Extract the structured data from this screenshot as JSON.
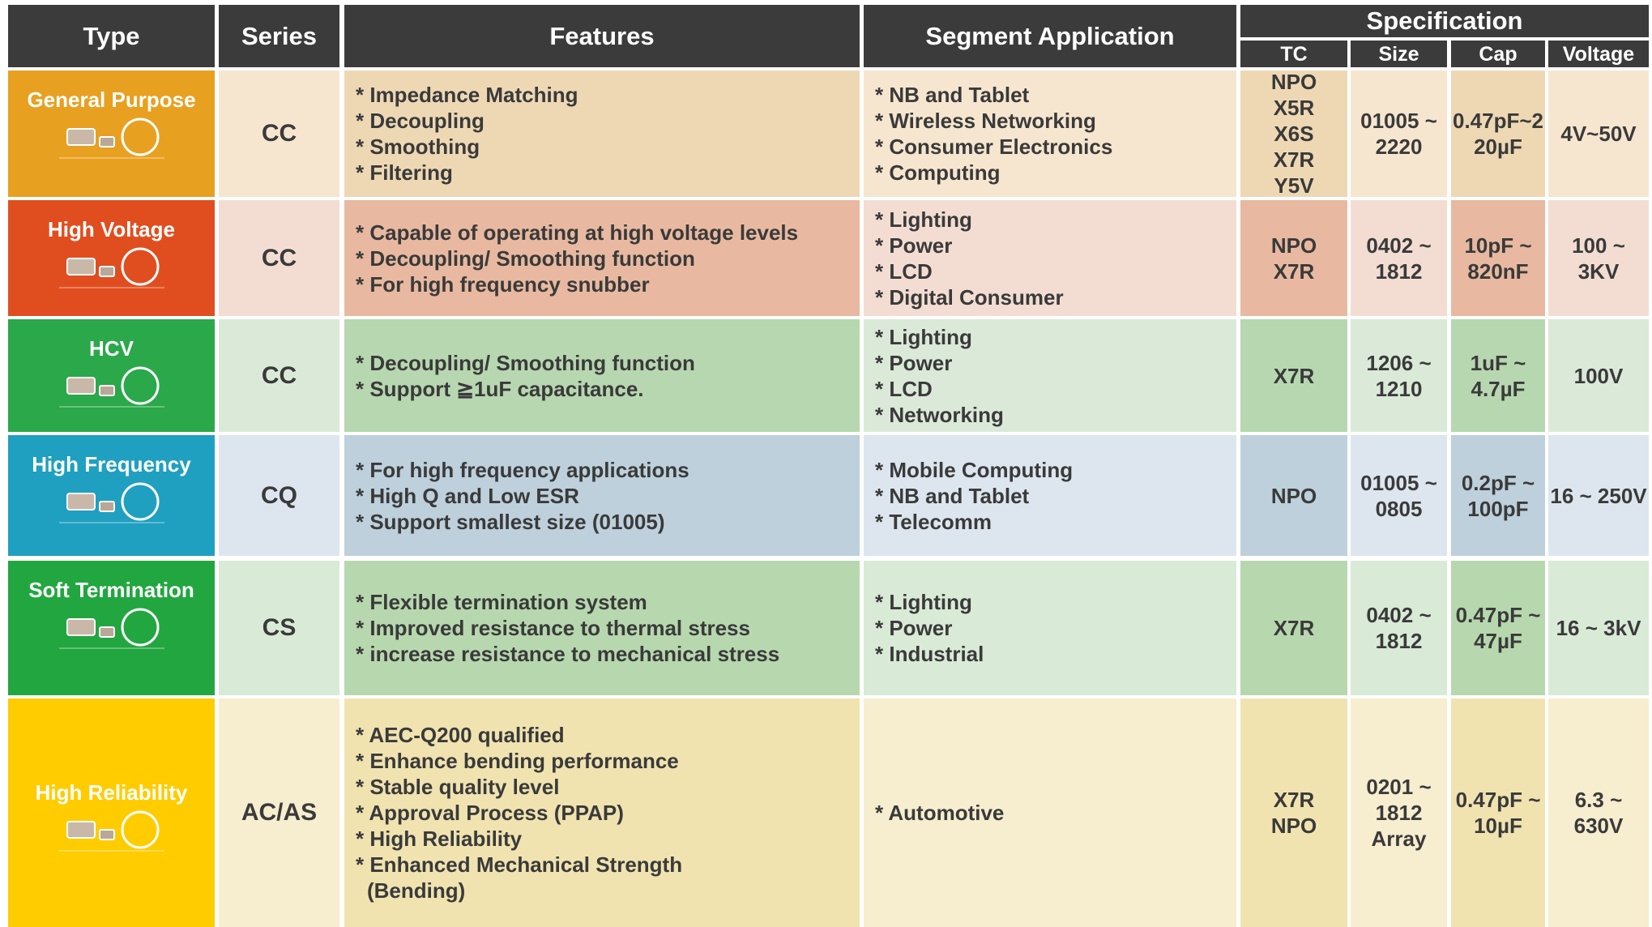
{
  "header": {
    "columns": [
      "Type",
      "Series",
      "Features",
      "Segment Application"
    ],
    "spec_title": "Specification",
    "spec_columns": [
      "TC",
      "Size",
      "Cap",
      "Voltage"
    ]
  },
  "rows": [
    {
      "type": "General Purpose",
      "series": "CC",
      "features": [
        "* Impedance Matching",
        "* Decoupling",
        "* Smoothing",
        "* Filtering"
      ],
      "segments": [
        "* NB and Tablet",
        "* Wireless Networking",
        "* Consumer Electronics",
        "* Computing"
      ],
      "tc": [
        "NPO",
        "X5R",
        "X6S",
        "X7R",
        "Y5V"
      ],
      "size": [
        "01005 ~",
        "2220"
      ],
      "cap": [
        "0.47pF~2",
        "20µF"
      ],
      "voltage": [
        "4V~50V"
      ]
    },
    {
      "type": "High Voltage",
      "series": "CC",
      "features": [
        "* Capable of operating at high voltage levels",
        "* Decoupling/ Smoothing function",
        "* For high frequency snubber"
      ],
      "segments": [
        "* Lighting",
        "* Power",
        "* LCD",
        "* Digital Consumer"
      ],
      "tc": [
        "NPO",
        "X7R"
      ],
      "size": [
        "0402 ~",
        "1812"
      ],
      "cap": [
        "10pF ~",
        "820nF"
      ],
      "voltage": [
        "100 ~",
        "3KV"
      ]
    },
    {
      "type": "HCV",
      "series": "CC",
      "features": [
        "* Decoupling/ Smoothing function",
        "* Support ≧1uF capacitance."
      ],
      "segments": [
        "* Lighting",
        "* Power",
        "* LCD",
        "* Networking"
      ],
      "tc": [
        "X7R"
      ],
      "size": [
        "1206 ~",
        "1210"
      ],
      "cap": [
        "1uF ~",
        "4.7µF"
      ],
      "voltage": [
        "100V"
      ]
    },
    {
      "type": "High Frequency",
      "series": "CQ",
      "features": [
        "* For high frequency applications",
        "* High Q and Low ESR",
        "* Support smallest size (01005)"
      ],
      "segments": [
        "* Mobile Computing",
        "* NB and Tablet",
        "* Telecomm"
      ],
      "tc": [
        "NPO"
      ],
      "size": [
        "01005 ~",
        "0805"
      ],
      "cap": [
        "0.2pF ~",
        "100pF"
      ],
      "voltage": [
        "16 ~ 250V"
      ]
    },
    {
      "type": "Soft Termination",
      "series": "CS",
      "features": [
        "* Flexible termination system",
        "* Improved resistance to thermal stress",
        "* increase resistance to mechanical stress"
      ],
      "segments": [
        "* Lighting",
        "* Power",
        "* Industrial"
      ],
      "tc": [
        "X7R"
      ],
      "size": [
        "0402 ~",
        "1812"
      ],
      "cap": [
        "0.47pF ~",
        "47µF"
      ],
      "voltage": [
        "16 ~ 3kV"
      ]
    },
    {
      "type": "High Reliability",
      "series": "AC/AS",
      "features": [
        "* AEC-Q200 qualified",
        "* Enhance bending performance",
        "* Stable quality level",
        "* Approval Process (PPAP)",
        "* High Reliability",
        "* Enhanced Mechanical Strength",
        "(Bending)"
      ],
      "segments": [
        "* Automotive"
      ],
      "tc": [
        "X7R",
        "NPO"
      ],
      "size": [
        "0201 ~",
        "1812",
        "Array"
      ],
      "cap": [
        "0.47pF ~",
        "10µF"
      ],
      "voltage": [
        "6.3 ~",
        "630V"
      ]
    }
  ]
}
